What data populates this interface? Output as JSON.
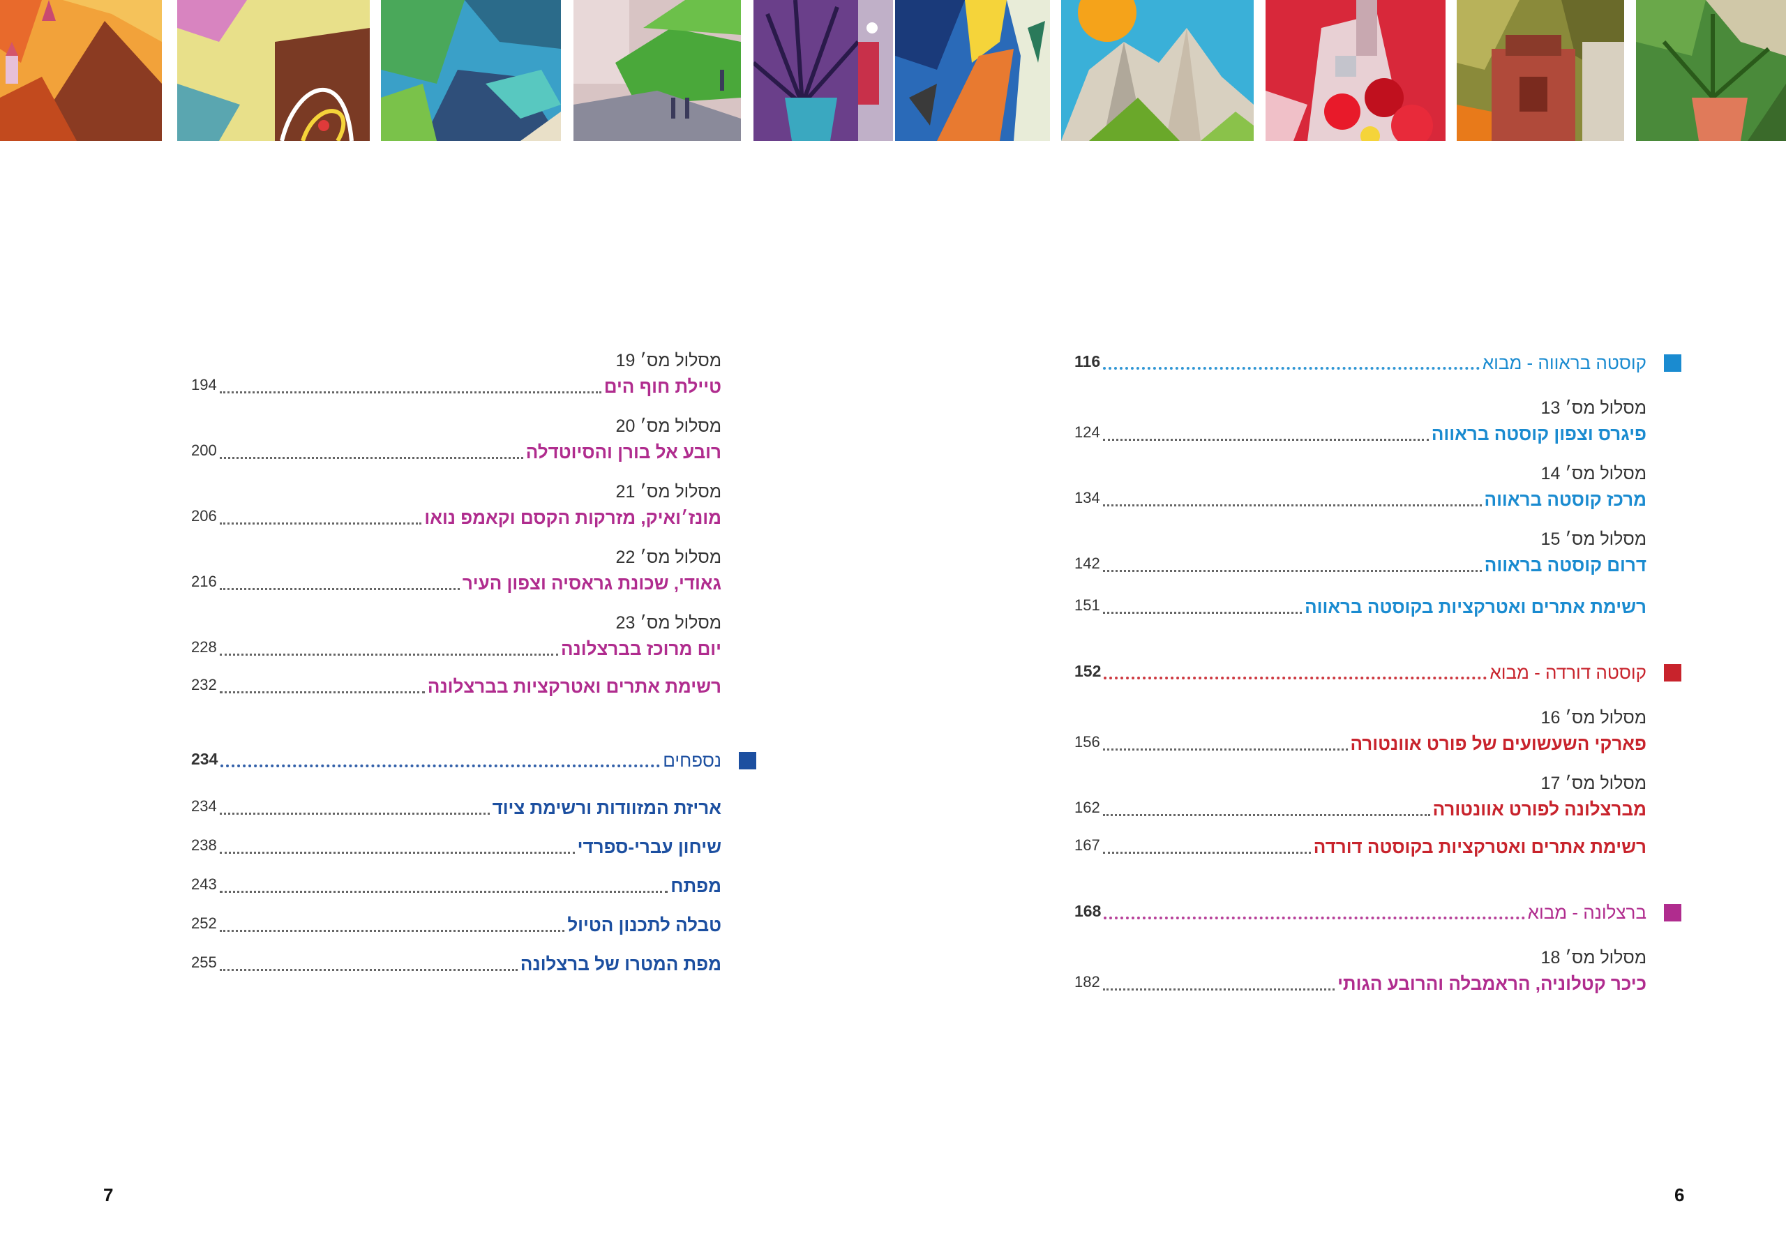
{
  "colors": {
    "costa_brava": "#1a8bd0",
    "costa_dorada": "#c8232c",
    "barcelona": "#b02c8e",
    "appendix": "#1c4fa0"
  },
  "illustration_strip": {
    "description_icons": [
      "mountain-landscape",
      "yellow-field",
      "green-coast",
      "town-street",
      "agave-plant",
      "coastal-cliffs",
      "sun-peaks",
      "red-flowers-tower",
      "church-facade",
      "palm-terrace"
    ]
  },
  "right_page": {
    "page_number": "6",
    "sections": [
      {
        "title": "קוסטה בראווה - מבוא",
        "page": "116",
        "color_key": "costa_brava",
        "routes": [
          {
            "label": "מסלול מס׳ 13",
            "title": "פיגרס וצפון קוסטה בראווה",
            "page": "124"
          },
          {
            "label": "מסלול מס׳ 14",
            "title": "מרכז קוסטה בראווה",
            "page": "134"
          },
          {
            "label": "מסלול מס׳ 15",
            "title": "דרום קוסטה בראווה",
            "page": "142"
          }
        ],
        "list": {
          "title": "רשימת אתרים ואטרקציות בקוסטה בראווה",
          "page": "151"
        }
      },
      {
        "title": "קוסטה דורדה - מבוא",
        "page": "152",
        "color_key": "costa_dorada",
        "routes": [
          {
            "label": "מסלול מס׳ 16",
            "title": "פארקי השעשועים של פורט אוונטורה",
            "page": "156"
          },
          {
            "label": "מסלול מס׳ 17",
            "title": "מברצלונה לפורט אוונטורה",
            "page": "162"
          }
        ],
        "list": {
          "title": "רשימת אתרים ואטרקציות בקוסטה דורדה",
          "page": "167"
        }
      },
      {
        "title": "ברצלונה - מבוא",
        "page": "168",
        "color_key": "barcelona",
        "routes": [
          {
            "label": "מסלול מס׳ 18",
            "title": "כיכר קטלוניה, הראמבלה והרובע הגותי",
            "page": "182"
          }
        ]
      }
    ]
  },
  "left_page": {
    "page_number": "7",
    "routes": [
      {
        "label": "מסלול מס׳ 19",
        "title": "טיילת חוף הים",
        "page": "194"
      },
      {
        "label": "מסלול מס׳ 20",
        "title": "רובע אל בורן והסיוטדלה",
        "page": "200"
      },
      {
        "label": "מסלול מס׳ 21",
        "title": "מונז׳ואיק, מזרקות הקסם וקאמפ נואו",
        "page": "206"
      },
      {
        "label": "מסלול מס׳ 22",
        "title": "גאודי, שכונת גראסיה וצפון העיר",
        "page": "216"
      },
      {
        "label": "מסלול מס׳ 23",
        "title": "יום מרוכז בברצלונה",
        "page": "228"
      }
    ],
    "list": {
      "title": "רשימת אתרים ואטרקציות בברצלונה",
      "page": "232"
    },
    "appendix": {
      "title": "נספחים",
      "page": "234",
      "items": [
        {
          "title": "אריזת המזוודות ורשימת ציוד",
          "page": "234"
        },
        {
          "title": "שיחון עברי-ספרדי",
          "page": "238"
        },
        {
          "title": "מפתח",
          "page": "243"
        },
        {
          "title": "טבלה לתכנון הטיול",
          "page": "252"
        },
        {
          "title": "מפת המטרו של ברצלונה",
          "page": "255"
        }
      ]
    }
  }
}
